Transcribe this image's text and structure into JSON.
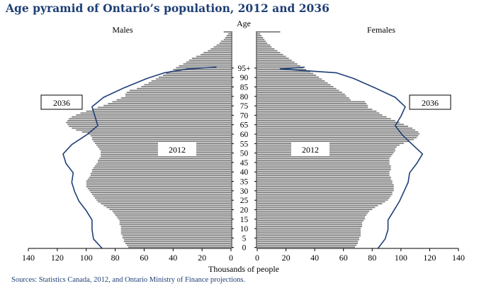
{
  "title": "Age pyramid of Ontario’s population, 2012 and 2036",
  "source": "Sources:  Statistics Canada, 2012, and Ontario Ministry of Finance projections.",
  "colors": {
    "title": "#1f3f75",
    "bars_2012": "#808080",
    "bar_stripes": "#ffffff",
    "line_2036": "#1f3f75"
  },
  "chart_data": {
    "type": "bar",
    "orientation": "horizontal-pyramid",
    "age_axis_label": "Age",
    "age_tick_labels": [
      "0",
      "5",
      "10",
      "15",
      "20",
      "25",
      "30",
      "35",
      "40",
      "45",
      "50",
      "55",
      "60",
      "65",
      "70",
      "75",
      "80",
      "85",
      "90",
      "95+"
    ],
    "xlabel": "Thousands of people",
    "xlim": [
      0,
      140
    ],
    "x_tick_labels": [
      "140",
      "120",
      "100",
      "80",
      "60",
      "40",
      "20",
      "0"
    ],
    "panel_labels": {
      "left": "Males",
      "right": "Females"
    },
    "annotations": {
      "year_2012_left": "2012",
      "year_2012_right": "2012",
      "year_2036_left": "2036",
      "year_2036_right": "2036"
    },
    "series": [
      {
        "name": "Males 2012",
        "kind": "bars",
        "side": "left",
        "values": [
          71,
          72,
          73,
          74,
          74,
          75,
          75,
          76,
          76,
          76,
          76,
          76,
          77,
          77,
          77,
          78,
          79,
          80,
          81,
          82,
          84,
          86,
          88,
          90,
          92,
          93,
          94,
          95,
          96,
          97,
          98,
          99,
          100,
          100,
          100,
          100,
          99,
          98,
          97,
          97,
          96,
          96,
          95,
          94,
          93,
          92,
          92,
          91,
          90,
          90,
          90,
          90,
          91,
          92,
          93,
          94,
          95,
          96,
          96,
          97,
          99,
          103,
          107,
          110,
          112,
          113,
          114,
          113,
          112,
          110,
          107,
          104,
          100,
          96,
          92,
          88,
          85,
          82,
          79,
          76,
          73,
          73,
          72,
          70,
          65,
          62,
          60,
          57,
          55,
          52,
          50,
          47,
          45,
          42,
          40,
          38,
          36,
          33,
          31,
          29,
          27,
          24,
          21,
          19,
          16,
          14,
          12,
          10,
          8,
          7,
          5,
          4,
          3,
          2,
          5
        ]
      },
      {
        "name": "Females 2012",
        "kind": "bars",
        "side": "right",
        "values": [
          68,
          69,
          70,
          70,
          71,
          71,
          72,
          72,
          72,
          72,
          72,
          73,
          73,
          73,
          74,
          75,
          75,
          76,
          77,
          78,
          80,
          82,
          84,
          87,
          89,
          91,
          92,
          93,
          94,
          94,
          95,
          95,
          95,
          95,
          94,
          94,
          93,
          93,
          92,
          92,
          92,
          93,
          93,
          93,
          92,
          92,
          92,
          92,
          93,
          94,
          95,
          96,
          96,
          97,
          99,
          102,
          106,
          109,
          111,
          112,
          113,
          112,
          110,
          108,
          105,
          102,
          99,
          96,
          93,
          90,
          87,
          85,
          83,
          80,
          77,
          77,
          76,
          75,
          65,
          64,
          62,
          61,
          59,
          57,
          55,
          53,
          51,
          49,
          47,
          45,
          43,
          41,
          39,
          37,
          34,
          32,
          30,
          28,
          26,
          24,
          22,
          20,
          18,
          16,
          14,
          12,
          10,
          9,
          7,
          6,
          5,
          4,
          3,
          2,
          16
        ]
      },
      {
        "name": "Males 2036",
        "kind": "line",
        "side": "left",
        "points": [
          [
            0,
            89
          ],
          [
            5,
            95
          ],
          [
            10,
            96
          ],
          [
            15,
            96
          ],
          [
            20,
            100
          ],
          [
            25,
            105
          ],
          [
            30,
            108
          ],
          [
            35,
            110
          ],
          [
            40,
            109
          ],
          [
            45,
            114
          ],
          [
            50,
            116
          ],
          [
            55,
            110
          ],
          [
            60,
            100
          ],
          [
            65,
            92
          ],
          [
            70,
            94
          ],
          [
            75,
            96
          ],
          [
            80,
            88
          ],
          [
            85,
            74
          ],
          [
            90,
            58
          ],
          [
            93,
            46
          ],
          [
            95,
            30
          ],
          [
            96,
            10
          ]
        ]
      },
      {
        "name": "Females 2036",
        "kind": "line",
        "side": "right",
        "points": [
          [
            0,
            84
          ],
          [
            5,
            89
          ],
          [
            10,
            91
          ],
          [
            15,
            91
          ],
          [
            20,
            95
          ],
          [
            25,
            99
          ],
          [
            30,
            102
          ],
          [
            35,
            105
          ],
          [
            40,
            106
          ],
          [
            45,
            111
          ],
          [
            50,
            115
          ],
          [
            55,
            108
          ],
          [
            60,
            101
          ],
          [
            65,
            96
          ],
          [
            70,
            100
          ],
          [
            75,
            103
          ],
          [
            80,
            96
          ],
          [
            85,
            82
          ],
          [
            90,
            67
          ],
          [
            93,
            55
          ],
          [
            95,
            16
          ],
          [
            96,
            33
          ]
        ]
      }
    ]
  }
}
